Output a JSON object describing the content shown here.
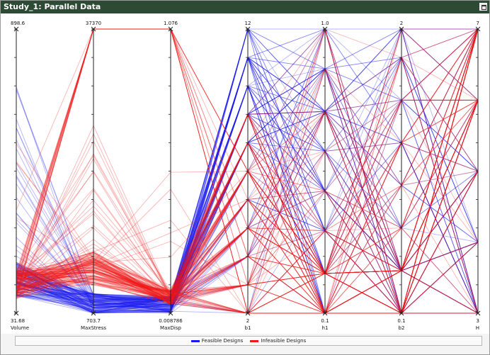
{
  "window": {
    "title": "Study_1: Parallel Data",
    "maximize_icon": "maximize-window-icon"
  },
  "toolbar": {
    "icons": [
      "select-tool-icon",
      "zoom-icon",
      "settings-icon",
      "reset-icon",
      "pan-icon",
      "grid-icon"
    ]
  },
  "colors": {
    "feasible": "#1a1aee",
    "infeasible": "#ee1a1a",
    "axis": "#222222"
  },
  "chart_data": {
    "type": "parallel-coordinates",
    "axes": [
      {
        "name": "Volume",
        "min": "31.68",
        "max": "898.6"
      },
      {
        "name": "MaxStress",
        "min": "703.7",
        "max": "37370"
      },
      {
        "name": "MaxDisp",
        "min": "0.008786",
        "max": "1.076"
      },
      {
        "name": "b1",
        "min": "2",
        "max": "12"
      },
      {
        "name": "h1",
        "min": "0.1",
        "max": "1.0"
      },
      {
        "name": "b2",
        "min": "0.1",
        "max": "2"
      },
      {
        "name": "H",
        "min": "3",
        "max": "7"
      }
    ],
    "series": [
      {
        "name": "Feasible Designs",
        "color": "#1a1aee"
      },
      {
        "name": "Infeasible Designs",
        "color": "#ee1a1a"
      }
    ],
    "legend_position": "bottom"
  }
}
